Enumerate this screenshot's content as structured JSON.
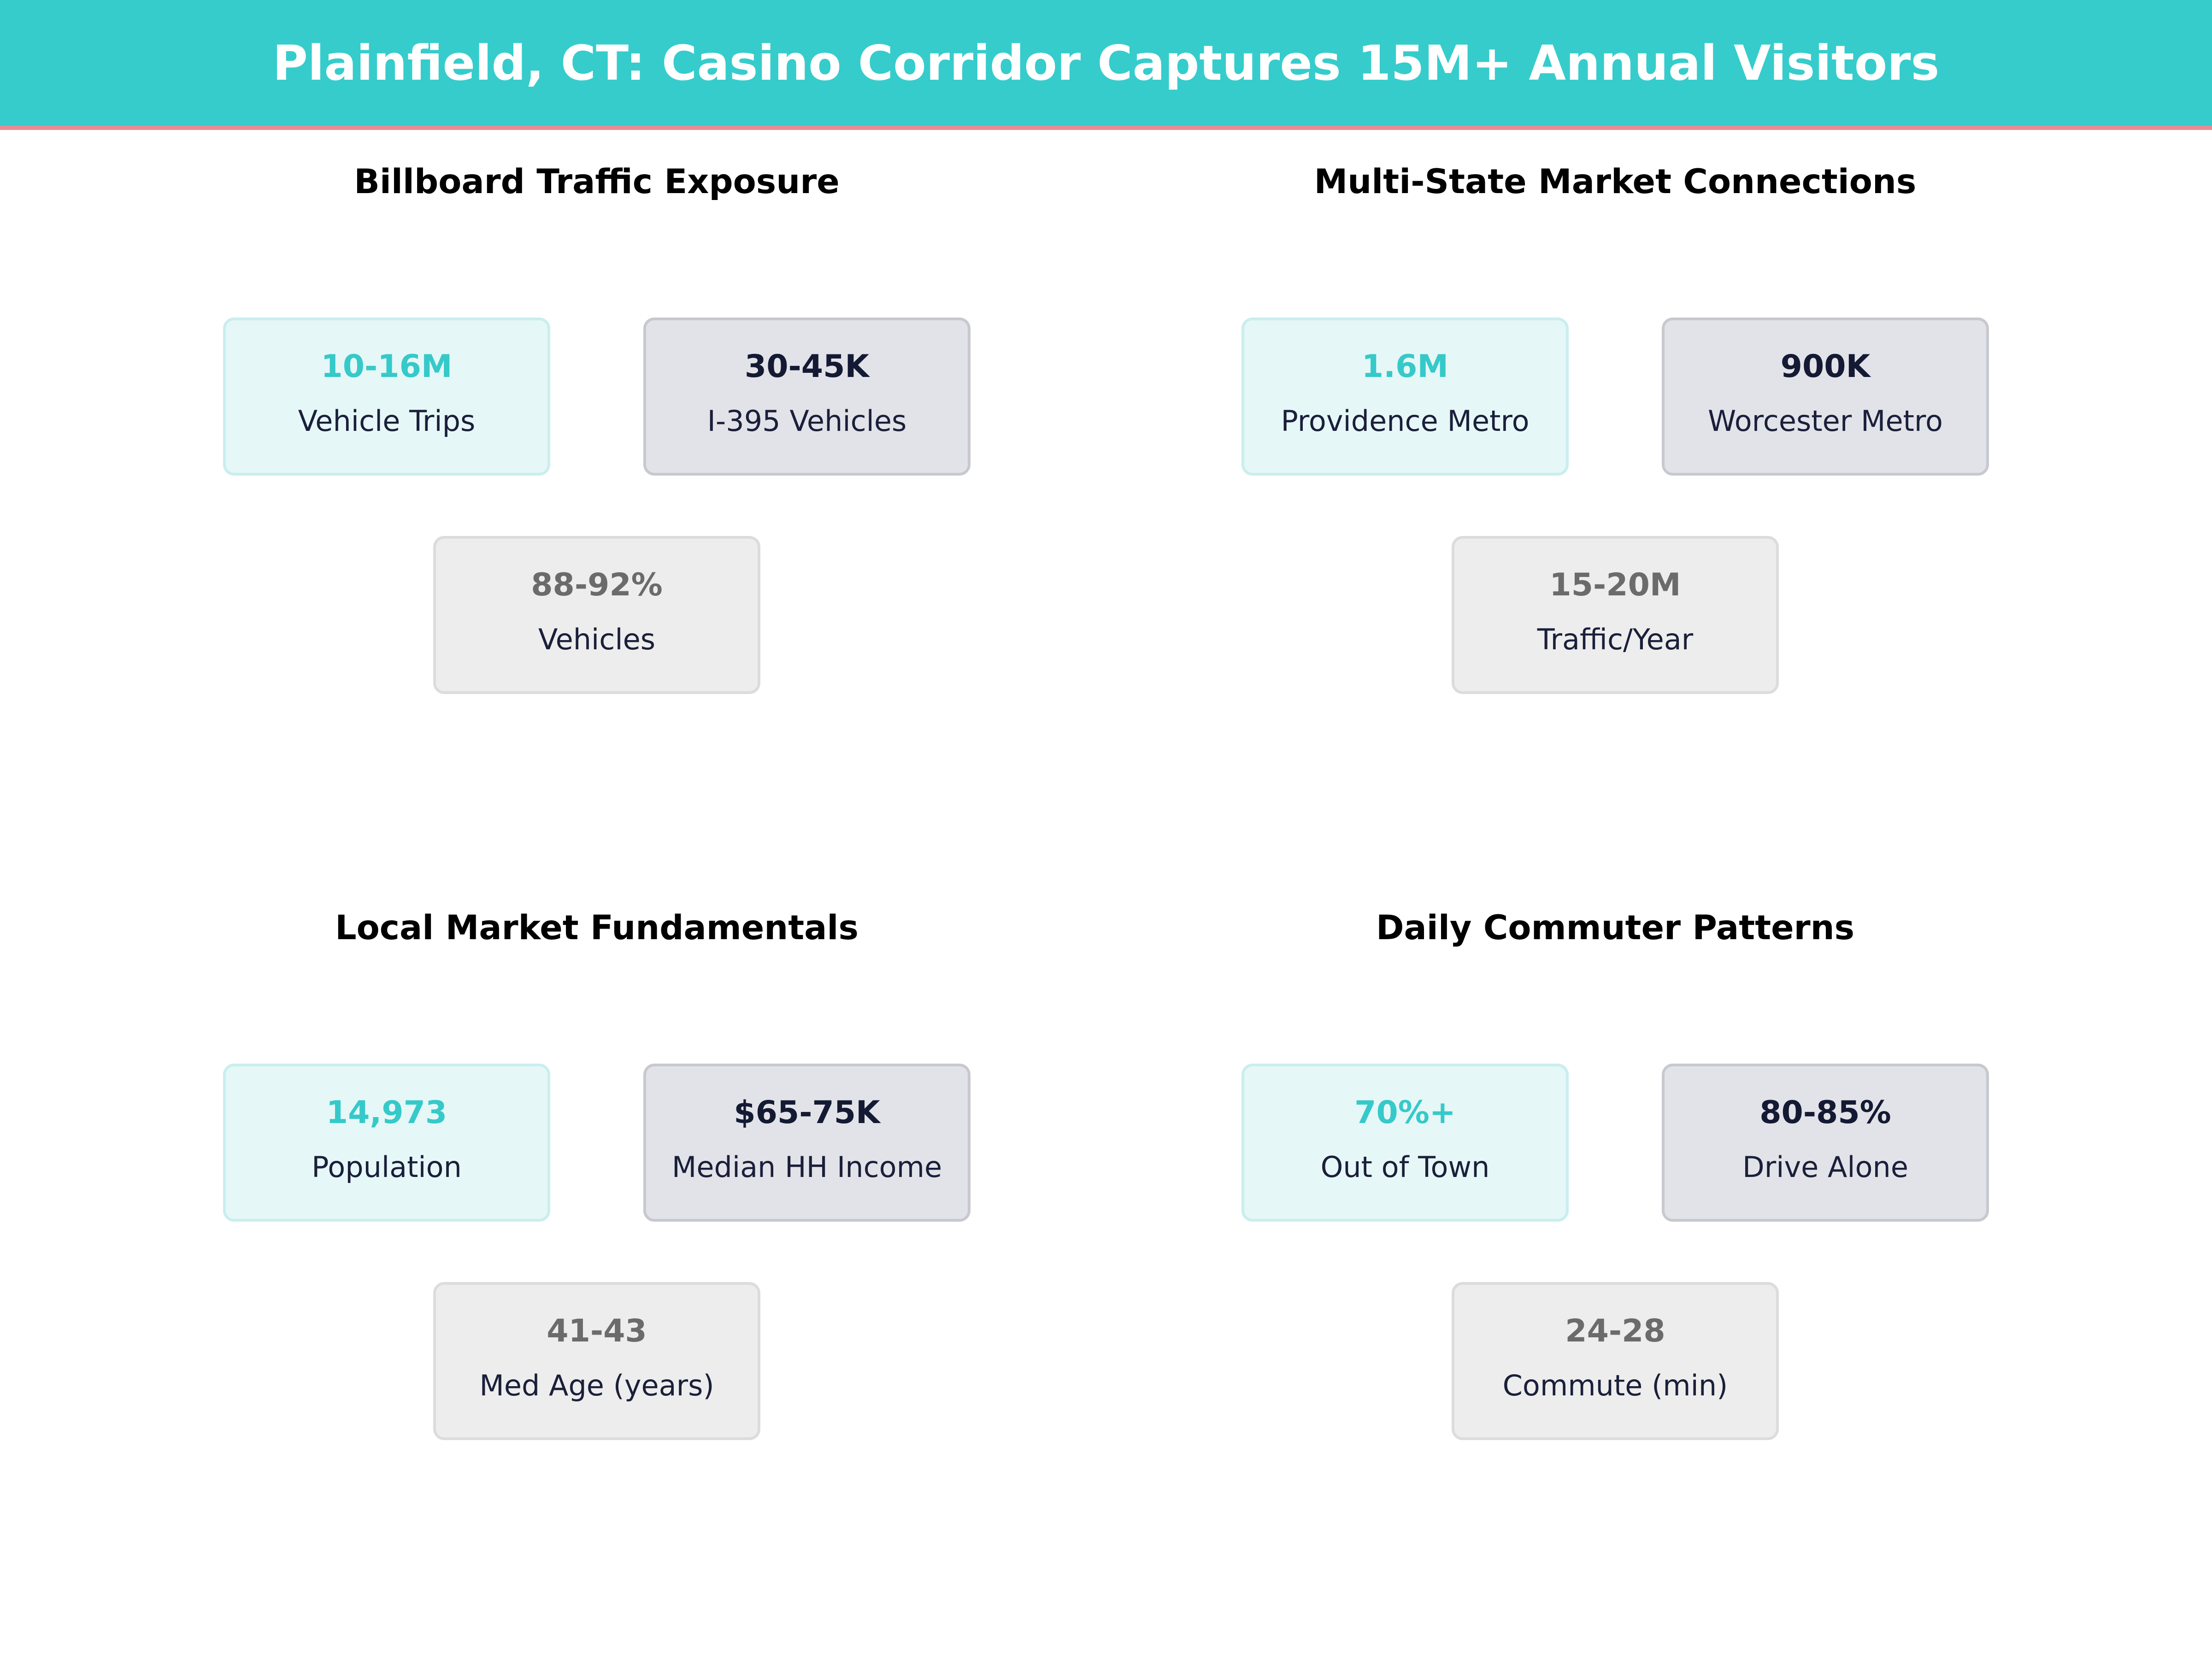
{
  "header": {
    "title": "Plainfield, CT: Casino Corridor Captures 15M+ Annual Visitors"
  },
  "panels": [
    {
      "title": "Billboard Traffic Exposure",
      "cards": [
        {
          "value": "10-16M",
          "label": "Vehicle Trips"
        },
        {
          "value": "30-45K",
          "label": "I-395 Vehicles"
        },
        {
          "value": "88-92%",
          "label": "Vehicles"
        }
      ]
    },
    {
      "title": "Multi-State Market Connections",
      "cards": [
        {
          "value": "1.6M",
          "label": "Providence Metro"
        },
        {
          "value": "900K",
          "label": "Worcester Metro"
        },
        {
          "value": "15-20M",
          "label": "Traffic/Year"
        }
      ]
    },
    {
      "title": "Local Market Fundamentals",
      "cards": [
        {
          "value": "14,973",
          "label": "Population"
        },
        {
          "value": "$65-75K",
          "label": "Median HH Income"
        },
        {
          "value": "41-43",
          "label": "Med Age (years)"
        }
      ]
    },
    {
      "title": "Daily Commuter Patterns",
      "cards": [
        {
          "value": "70%+",
          "label": "Out of Town"
        },
        {
          "value": "80-85%",
          "label": "Drive Alone"
        },
        {
          "value": "24-28",
          "label": "Commute (min)"
        }
      ]
    }
  ]
}
